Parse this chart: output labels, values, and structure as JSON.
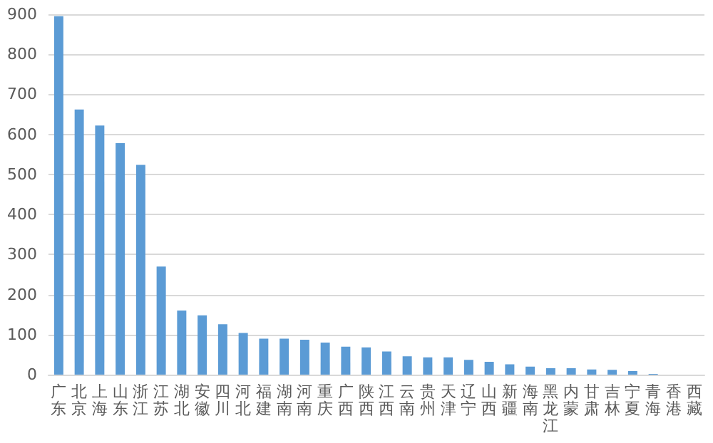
{
  "chart_data": {
    "type": "bar",
    "categories": [
      "广东",
      "北京",
      "上海",
      "山东",
      "浙江",
      "江苏",
      "湖北",
      "安徽",
      "四川",
      "河北",
      "福建",
      "湖南",
      "河南",
      "重庆",
      "广西",
      "陕西",
      "江西",
      "云南",
      "贵州",
      "天津",
      "辽宁",
      "山西",
      "新疆",
      "海南",
      "黑龙江",
      "内蒙",
      "甘肃",
      "吉林",
      "宁夏",
      "青海",
      "香港",
      "西藏"
    ],
    "values": [
      895,
      662,
      622,
      578,
      524,
      270,
      160,
      148,
      126,
      104,
      90,
      90,
      87,
      80,
      70,
      68,
      58,
      46,
      43,
      43,
      37,
      32,
      26,
      20,
      16,
      16,
      13,
      12,
      9,
      2,
      0,
      0
    ],
    "color": "#5b9bd5",
    "ylim": [
      0,
      900
    ],
    "yticks": [
      0,
      100,
      200,
      300,
      400,
      500,
      600,
      700,
      800,
      900
    ],
    "grid": "y"
  }
}
